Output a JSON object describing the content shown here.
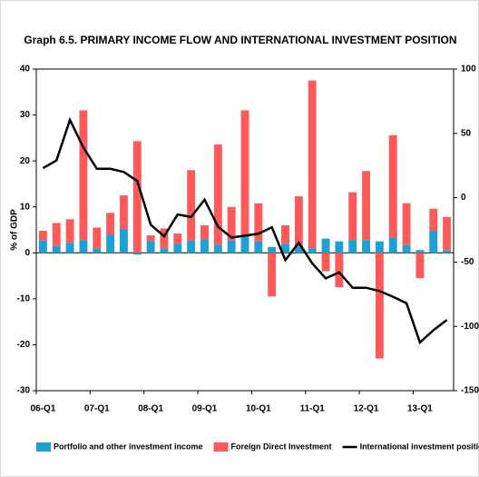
{
  "chart_data": {
    "type": "bar",
    "title": "Graph 6.5. PRIMARY INCOME FLOW AND INTERNATIONAL INVESTMENT POSITION",
    "y_label": "% of GDP",
    "categories": [
      "06-Q1",
      null,
      null,
      null,
      "07-Q1",
      null,
      null,
      null,
      "08-Q1",
      null,
      null,
      null,
      "09-Q1",
      null,
      null,
      null,
      "10-Q1",
      null,
      null,
      null,
      "11-Q1",
      null,
      null,
      null,
      "12-Q1",
      null,
      null,
      null,
      "13-Q1",
      null,
      null
    ],
    "ylim": [
      -30,
      40
    ],
    "yticks": [
      -30,
      -20,
      -10,
      0,
      10,
      20,
      30,
      40
    ],
    "y2lim": [
      -150,
      100
    ],
    "y2ticks": [
      -150,
      -100,
      -50,
      0,
      50,
      100
    ],
    "stacked": true,
    "series": [
      {
        "name": "Portfolio and other investment income",
        "color": "#1ea0d2",
        "values": [
          2.7,
          1.5,
          2.2,
          2.8,
          1,
          4,
          5.2,
          -0.4,
          2.6,
          1,
          2,
          2.7,
          3,
          1.8,
          2.7,
          3.5,
          2.5,
          1.3,
          2,
          1.4,
          1,
          3.1,
          2.5,
          2.8,
          2.8,
          2.5,
          3.3,
          1.7,
          0.6,
          4.8,
          0.6
        ]
      },
      {
        "name": "Foreign Direct Investment",
        "color": "#ff5a5a",
        "values": [
          2.1,
          5,
          5.1,
          28.2,
          4.5,
          4.7,
          7.3,
          24.3,
          1.2,
          4.3,
          2.2,
          15.3,
          3,
          21.8,
          7.3,
          27.5,
          8.3,
          -9.5,
          4,
          10.9,
          36.5,
          -4,
          -7.5,
          10.4,
          15,
          -23,
          22.3,
          9.1,
          -5.5,
          4.8,
          7.2
        ]
      },
      {
        "name": "International investment position (rhs)",
        "color": "#000000",
        "type": "line",
        "axis": "y2",
        "values": [
          23,
          29,
          60.5,
          39,
          22.5,
          22.5,
          20,
          13,
          -21,
          -30,
          -13,
          -15,
          -1.5,
          -22.5,
          -31,
          -29.5,
          -28,
          -23,
          -48.5,
          -35,
          -51,
          -62.7,
          -58,
          -70,
          -70,
          -72.5,
          -77,
          -82,
          -112.5,
          -103,
          -95
        ]
      }
    ]
  }
}
